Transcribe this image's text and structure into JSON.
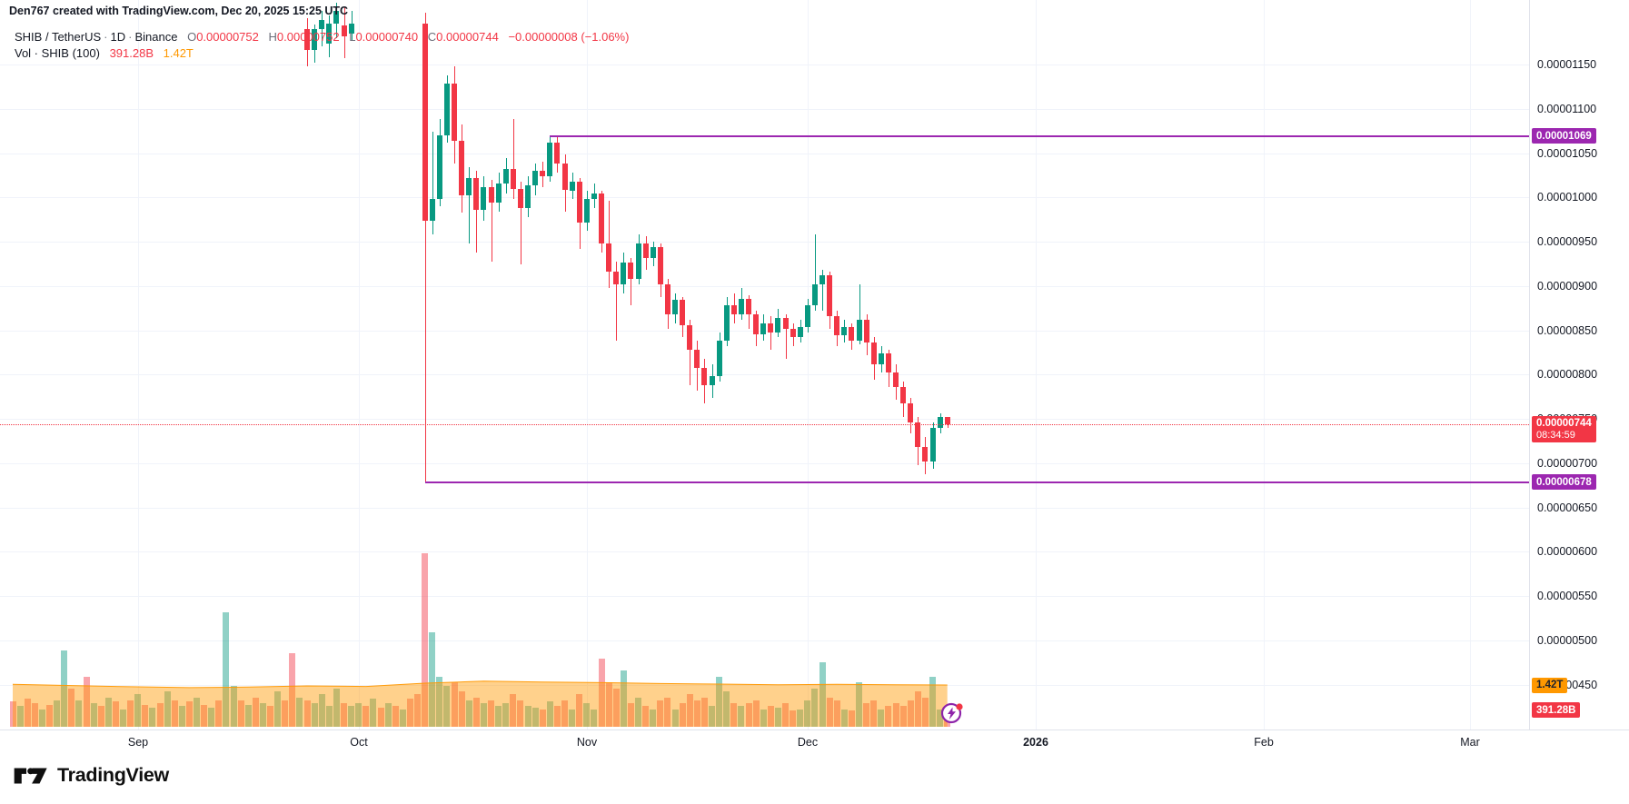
{
  "attribution": "Den767 created with TradingView.com, Dec 20, 2025 15:25 UTC",
  "legend": {
    "symbol": "SHIB / TetherUS",
    "sep1": "·",
    "interval": "1D",
    "sep2": "·",
    "exchange": "Binance",
    "o_label": "O",
    "o_value": "0.00000752",
    "h_label": "H",
    "h_value": "0.00000752",
    "l_label": "L",
    "l_value": "0.00000740",
    "c_label": "C",
    "c_value": "0.00000744",
    "change": "−0.00000008 (−1.06%)",
    "volume_label": "Vol · SHIB (100)",
    "volume_value": "391.28B",
    "volume_ma_value": "1.42T"
  },
  "price_axis": {
    "ticks_e8": [
      1150,
      1100,
      1050,
      1000,
      950,
      900,
      850,
      800,
      750,
      700,
      650,
      600,
      550,
      500,
      450
    ],
    "current_price_badge": {
      "price": "0.00000744",
      "countdown": "08:34:59"
    },
    "volume_ma_badge": "1.42T",
    "volume_badge": "391.28B"
  },
  "time_axis": {
    "labels": [
      {
        "text": "Sep",
        "index": 17,
        "bold": false
      },
      {
        "text": "Oct",
        "index": 47,
        "bold": false
      },
      {
        "text": "Nov",
        "index": 78,
        "bold": false
      },
      {
        "text": "Dec",
        "index": 108,
        "bold": false
      },
      {
        "text": "2026",
        "index": 139,
        "bold": true
      },
      {
        "text": "Feb",
        "index": 170,
        "bold": false
      },
      {
        "text": "Mar",
        "index": 198,
        "bold": false
      }
    ]
  },
  "logo_text": "TradingView",
  "colors": {
    "up": "#089981",
    "down": "#f23645",
    "vol_up": "rgba(8,153,129,0.45)",
    "vol_down": "rgba(242,54,69,0.45)",
    "ma_fill": "rgba(255,152,0,0.45)",
    "ma_line": "rgba(255,152,0,0.95)",
    "level": "#9c27b0",
    "current": "#f23645",
    "ma_badge_bg": "#ff9800"
  },
  "chart_data": {
    "type": "candlestick+volume",
    "symbol": "SHIB / TetherUS",
    "interval": "1D",
    "exchange": "Binance",
    "price_unit": "1e-8 USDT",
    "volume_unit": "billions SHIB",
    "start_date_index0": "2025-08-15",
    "note": "bars = [dayIndex, open, high, low, close, volumeB, volColorIfNoOHLC]; OHLC null = candle above visible price window (only volume visible)",
    "levels": [
      {
        "price_e8": 1069,
        "label": "0.00001069",
        "start_index": 73
      },
      {
        "price_e8": 678,
        "label": "0.00000678",
        "start_index": 56
      }
    ],
    "current_price_e8": 744,
    "volume_ma_points": [
      [
        0,
        1.44
      ],
      [
        8,
        1.4
      ],
      [
        16,
        1.36
      ],
      [
        24,
        1.33
      ],
      [
        32,
        1.35
      ],
      [
        40,
        1.39
      ],
      [
        48,
        1.37
      ],
      [
        56,
        1.48
      ],
      [
        64,
        1.55
      ],
      [
        72,
        1.52
      ],
      [
        80,
        1.5
      ],
      [
        88,
        1.47
      ],
      [
        96,
        1.45
      ],
      [
        104,
        1.43
      ],
      [
        112,
        1.44
      ],
      [
        120,
        1.43
      ],
      [
        127,
        1.42
      ]
    ],
    "bars": [
      [
        0,
        null,
        null,
        null,
        null,
        850,
        "r"
      ],
      [
        1,
        null,
        null,
        null,
        null,
        700,
        "g"
      ],
      [
        2,
        null,
        null,
        null,
        null,
        950,
        "r"
      ],
      [
        3,
        null,
        null,
        null,
        null,
        800,
        "r"
      ],
      [
        4,
        null,
        null,
        null,
        null,
        600,
        "g"
      ],
      [
        5,
        null,
        null,
        null,
        null,
        750,
        "r"
      ],
      [
        6,
        null,
        null,
        null,
        null,
        900,
        "g"
      ],
      [
        7,
        null,
        null,
        null,
        null,
        2600,
        "g"
      ],
      [
        8,
        null,
        null,
        null,
        null,
        1300,
        "r"
      ],
      [
        9,
        null,
        null,
        null,
        null,
        900,
        "g"
      ],
      [
        10,
        null,
        null,
        null,
        null,
        1700,
        "r"
      ],
      [
        11,
        null,
        null,
        null,
        null,
        800,
        "g"
      ],
      [
        12,
        null,
        null,
        null,
        null,
        700,
        "r"
      ],
      [
        13,
        null,
        null,
        null,
        null,
        1000,
        "g"
      ],
      [
        14,
        null,
        null,
        null,
        null,
        850,
        "r"
      ],
      [
        15,
        null,
        null,
        null,
        null,
        600,
        "g"
      ],
      [
        16,
        null,
        null,
        null,
        null,
        900,
        "r"
      ],
      [
        17,
        null,
        null,
        null,
        null,
        1100,
        "g"
      ],
      [
        18,
        null,
        null,
        null,
        null,
        750,
        "r"
      ],
      [
        19,
        null,
        null,
        null,
        null,
        650,
        "g"
      ],
      [
        20,
        null,
        null,
        null,
        null,
        800,
        "r"
      ],
      [
        21,
        null,
        null,
        null,
        null,
        1200,
        "g"
      ],
      [
        22,
        null,
        null,
        null,
        null,
        900,
        "r"
      ],
      [
        23,
        null,
        null,
        null,
        null,
        700,
        "g"
      ],
      [
        24,
        null,
        null,
        null,
        null,
        850,
        "r"
      ],
      [
        25,
        null,
        null,
        null,
        null,
        1000,
        "g"
      ],
      [
        26,
        null,
        null,
        null,
        null,
        750,
        "r"
      ],
      [
        27,
        null,
        null,
        null,
        null,
        650,
        "g"
      ],
      [
        28,
        null,
        null,
        null,
        null,
        900,
        "r"
      ],
      [
        29,
        null,
        null,
        null,
        null,
        3900,
        "g"
      ],
      [
        30,
        null,
        null,
        null,
        null,
        1400,
        "g"
      ],
      [
        31,
        null,
        null,
        null,
        null,
        900,
        "r"
      ],
      [
        32,
        null,
        null,
        null,
        null,
        750,
        "g"
      ],
      [
        33,
        null,
        null,
        null,
        null,
        1000,
        "r"
      ],
      [
        34,
        null,
        null,
        null,
        null,
        800,
        "g"
      ],
      [
        35,
        null,
        null,
        null,
        null,
        700,
        "r"
      ],
      [
        36,
        null,
        null,
        null,
        null,
        1200,
        "g"
      ],
      [
        37,
        null,
        null,
        null,
        null,
        900,
        "r"
      ],
      [
        38,
        null,
        null,
        null,
        null,
        2500,
        "r"
      ],
      [
        39,
        null,
        null,
        null,
        null,
        1000,
        "g"
      ],
      [
        40,
        1190,
        1202,
        1148,
        1166,
        900
      ],
      [
        41,
        1166,
        1195,
        1152,
        1190,
        800
      ],
      [
        42,
        1190,
        1210,
        1170,
        1200,
        1100
      ],
      [
        43,
        1174,
        1205,
        1158,
        1196,
        700
      ],
      [
        44,
        1196,
        1220,
        1180,
        1210,
        1300
      ],
      [
        45,
        1194,
        1215,
        1157,
        1182,
        800
      ],
      [
        46,
        1185,
        1210,
        1178,
        1196,
        700
      ],
      [
        47,
        null,
        null,
        null,
        null,
        800,
        "g"
      ],
      [
        48,
        null,
        null,
        null,
        null,
        700,
        "r"
      ],
      [
        49,
        null,
        null,
        null,
        null,
        950,
        "g"
      ],
      [
        50,
        null,
        null,
        null,
        null,
        650,
        "r"
      ],
      [
        51,
        null,
        null,
        null,
        null,
        800,
        "g"
      ],
      [
        52,
        null,
        null,
        null,
        null,
        700,
        "r"
      ],
      [
        53,
        null,
        null,
        null,
        null,
        600,
        "g"
      ],
      [
        54,
        null,
        null,
        null,
        null,
        950,
        "r"
      ],
      [
        55,
        null,
        null,
        null,
        null,
        1100,
        "r"
      ],
      [
        56,
        1196,
        1208,
        678,
        974,
        5900
      ],
      [
        57,
        974,
        1074,
        958,
        998,
        3200
      ],
      [
        58,
        998,
        1088,
        990,
        1070,
        1700
      ],
      [
        59,
        1070,
        1138,
        1062,
        1128,
        1400
      ],
      [
        60,
        1128,
        1148,
        1038,
        1064,
        1500
      ],
      [
        61,
        1064,
        1082,
        983,
        1002,
        1200
      ],
      [
        62,
        1002,
        1034,
        948,
        1022,
        900
      ],
      [
        63,
        1022,
        1030,
        938,
        986,
        1000
      ],
      [
        64,
        986,
        1024,
        974,
        1012,
        800
      ],
      [
        65,
        1012,
        1020,
        928,
        994,
        900
      ],
      [
        66,
        994,
        1028,
        984,
        1016,
        700
      ],
      [
        67,
        1016,
        1044,
        1004,
        1032,
        800
      ],
      [
        68,
        1032,
        1088,
        998,
        1010,
        1100
      ],
      [
        69,
        1010,
        1018,
        924,
        988,
        900
      ],
      [
        70,
        988,
        1024,
        978,
        1014,
        700
      ],
      [
        71,
        1014,
        1038,
        1002,
        1030,
        650
      ],
      [
        72,
        1030,
        1040,
        1012,
        1024,
        600
      ],
      [
        73,
        1024,
        1069,
        1018,
        1062,
        850
      ],
      [
        74,
        1062,
        1068,
        1028,
        1038,
        700
      ],
      [
        75,
        1038,
        1048,
        984,
        1008,
        900
      ],
      [
        76,
        1008,
        1028,
        998,
        1018,
        600
      ],
      [
        77,
        1018,
        1022,
        942,
        972,
        1100
      ],
      [
        78,
        972,
        1008,
        962,
        998,
        800
      ],
      [
        79,
        998,
        1016,
        988,
        1004,
        600
      ],
      [
        80,
        1004,
        1008,
        938,
        948,
        2300
      ],
      [
        81,
        948,
        996,
        898,
        916,
        1500
      ],
      [
        82,
        916,
        928,
        838,
        902,
        1300
      ],
      [
        83,
        902,
        938,
        892,
        926,
        1900
      ],
      [
        84,
        926,
        932,
        878,
        908,
        800
      ],
      [
        85,
        908,
        958,
        902,
        948,
        1000
      ],
      [
        86,
        948,
        956,
        918,
        932,
        700
      ],
      [
        87,
        932,
        950,
        922,
        944,
        600
      ],
      [
        88,
        944,
        948,
        888,
        902,
        900
      ],
      [
        89,
        902,
        908,
        852,
        868,
        1000
      ],
      [
        90,
        868,
        892,
        858,
        884,
        600
      ],
      [
        91,
        884,
        888,
        842,
        856,
        800
      ],
      [
        92,
        856,
        862,
        788,
        828,
        1100
      ],
      [
        93,
        828,
        838,
        782,
        808,
        900
      ],
      [
        94,
        808,
        818,
        768,
        788,
        1000
      ],
      [
        95,
        788,
        812,
        774,
        798,
        700
      ],
      [
        96,
        798,
        848,
        792,
        838,
        1700
      ],
      [
        97,
        838,
        888,
        832,
        878,
        1200
      ],
      [
        98,
        878,
        892,
        858,
        868,
        800
      ],
      [
        99,
        868,
        898,
        862,
        886,
        700
      ],
      [
        100,
        886,
        890,
        852,
        868,
        800
      ],
      [
        101,
        868,
        872,
        832,
        846,
        900
      ],
      [
        102,
        846,
        868,
        838,
        858,
        600
      ],
      [
        103,
        858,
        866,
        828,
        848,
        700
      ],
      [
        104,
        848,
        874,
        842,
        864,
        650
      ],
      [
        105,
        864,
        868,
        818,
        852,
        800
      ],
      [
        106,
        852,
        858,
        832,
        842,
        550
      ],
      [
        107,
        842,
        862,
        836,
        854,
        600
      ],
      [
        108,
        854,
        886,
        848,
        878,
        900
      ],
      [
        109,
        878,
        958,
        872,
        902,
        1300
      ],
      [
        110,
        902,
        918,
        872,
        912,
        2200
      ],
      [
        111,
        912,
        916,
        852,
        866,
        1000
      ],
      [
        112,
        866,
        872,
        832,
        844,
        900
      ],
      [
        113,
        844,
        862,
        836,
        854,
        600
      ],
      [
        114,
        854,
        858,
        828,
        838,
        550
      ],
      [
        115,
        838,
        902,
        834,
        862,
        1500
      ],
      [
        116,
        862,
        868,
        822,
        836,
        800
      ],
      [
        117,
        836,
        842,
        794,
        812,
        900
      ],
      [
        118,
        812,
        832,
        802,
        824,
        600
      ],
      [
        119,
        824,
        828,
        786,
        802,
        700
      ],
      [
        120,
        802,
        812,
        772,
        786,
        800
      ],
      [
        121,
        786,
        792,
        752,
        768,
        700
      ],
      [
        122,
        768,
        774,
        734,
        746,
        900
      ],
      [
        123,
        746,
        752,
        698,
        718,
        1200
      ],
      [
        124,
        718,
        730,
        688,
        702,
        1000
      ],
      [
        125,
        702,
        746,
        694,
        740,
        1700
      ],
      [
        126,
        740,
        756,
        734,
        752,
        600
      ],
      [
        127,
        752,
        752,
        740,
        744,
        391.28
      ]
    ]
  }
}
